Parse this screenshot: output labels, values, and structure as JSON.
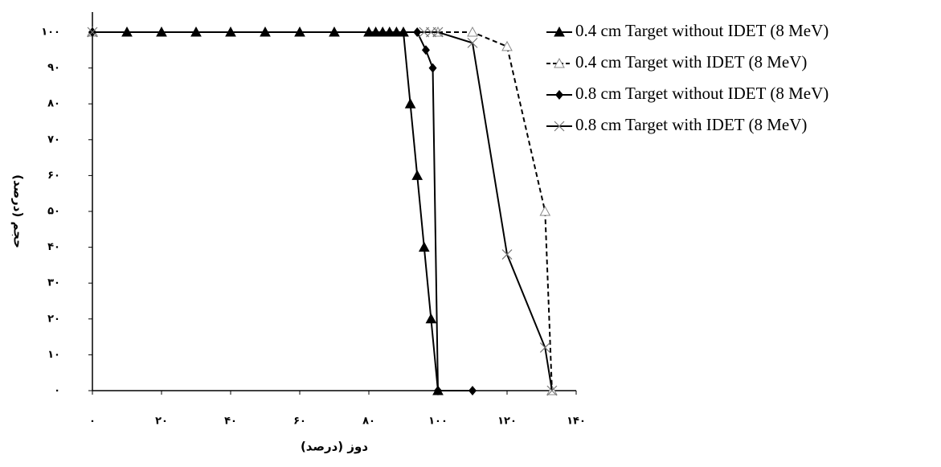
{
  "chart_data": {
    "type": "line",
    "xlabel": "دوز (درصد)",
    "ylabel": "حجم (درصد)",
    "xlim": [
      0,
      140
    ],
    "ylim": [
      0,
      100
    ],
    "xticks": [
      {
        "value": 0,
        "label": "۰"
      },
      {
        "value": 20,
        "label": "۲۰"
      },
      {
        "value": 40,
        "label": "۴۰"
      },
      {
        "value": 60,
        "label": "۶۰"
      },
      {
        "value": 80,
        "label": "۸۰"
      },
      {
        "value": 100,
        "label": "۱۰۰"
      },
      {
        "value": 120,
        "label": "۱۲۰"
      },
      {
        "value": 140,
        "label": "۱۴۰"
      }
    ],
    "yticks": [
      {
        "value": 0,
        "label": "۰"
      },
      {
        "value": 10,
        "label": "۱۰"
      },
      {
        "value": 20,
        "label": "۲۰"
      },
      {
        "value": 30,
        "label": "۳۰"
      },
      {
        "value": 40,
        "label": "۴۰"
      },
      {
        "value": 50,
        "label": "۵۰"
      },
      {
        "value": 60,
        "label": "۶۰"
      },
      {
        "value": 70,
        "label": "۷۰"
      },
      {
        "value": 80,
        "label": "۸۰"
      },
      {
        "value": 90,
        "label": "۹۰"
      },
      {
        "value": 100,
        "label": "۱۰۰"
      }
    ],
    "legend": "right",
    "series": [
      {
        "name": "0.4 cm Target without IDET (8 MeV)",
        "color": "#000000",
        "marker": "triangle-filled",
        "dash": false,
        "x": [
          0,
          10,
          20,
          30,
          40,
          50,
          60,
          70,
          80,
          82,
          84,
          86,
          88,
          90,
          92,
          94,
          96,
          98,
          100
        ],
        "values": [
          100,
          100,
          100,
          100,
          100,
          100,
          100,
          100,
          100,
          100,
          100,
          100,
          100,
          100,
          80,
          60,
          40,
          20,
          0
        ]
      },
      {
        "name": "0.4 cm Target with IDET (8 MeV)",
        "color": "#000000",
        "marker": "triangle-open",
        "dash": true,
        "x": [
          0,
          100,
          110,
          120,
          131,
          133
        ],
        "values": [
          100,
          100,
          100,
          96,
          50,
          0
        ]
      },
      {
        "name": "0.8 cm Target without IDET (8 MeV)",
        "color": "#000000",
        "marker": "diamond",
        "dash": false,
        "x": [
          0,
          94,
          96.5,
          98.5,
          100,
          110
        ],
        "values": [
          100,
          100,
          95,
          90,
          0,
          0
        ]
      },
      {
        "name": "0.8 cm Target with IDET (8 MeV)",
        "color": "#000000",
        "marker": "cross",
        "dash": false,
        "x": [
          0,
          96,
          98,
          100,
          110,
          120,
          131,
          133
        ],
        "values": [
          100,
          100,
          100,
          100,
          97,
          38,
          12,
          0
        ]
      }
    ]
  }
}
